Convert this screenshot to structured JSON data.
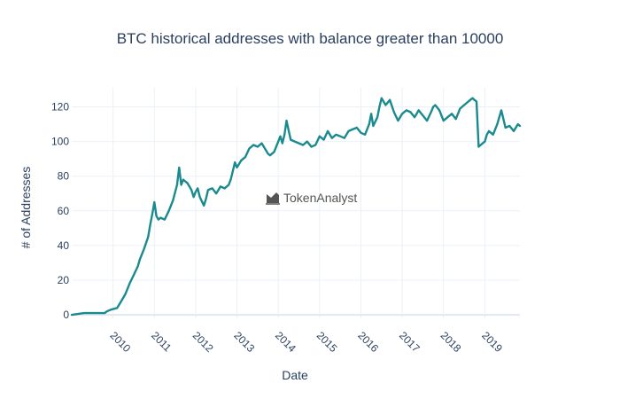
{
  "chart_data": {
    "type": "line",
    "title": "BTC historical addresses with balance greater than 10000",
    "xlabel": "Date",
    "ylabel": "# of Addresses",
    "xlim": [
      2009.0,
      2019.85
    ],
    "ylim": [
      -2,
      131
    ],
    "yticks": [
      0,
      20,
      40,
      60,
      80,
      100,
      120
    ],
    "xticks": [
      2010,
      2011,
      2012,
      2013,
      2014,
      2015,
      2016,
      2017,
      2018,
      2019
    ],
    "xtick_labels": [
      "2010",
      "2011",
      "2012",
      "2013",
      "2014",
      "2015",
      "2016",
      "2017",
      "2018",
      "2019"
    ],
    "grid": true,
    "line_color": "#1b8a8f",
    "series": [
      {
        "x": [
          2009.0,
          2009.3,
          2009.7,
          2009.8,
          2009.85,
          2009.95,
          2010.1,
          2010.2,
          2010.3,
          2010.4,
          2010.5,
          2010.6,
          2010.65,
          2010.75,
          2010.85,
          2010.9,
          2010.95,
          2011.0,
          2011.05,
          2011.1,
          2011.15,
          2011.25,
          2011.35,
          2011.45,
          2011.55,
          2011.6,
          2011.65,
          2011.7,
          2011.75,
          2011.8,
          2011.9,
          2011.95,
          2012.0,
          2012.05,
          2012.1,
          2012.2,
          2012.25,
          2012.3,
          2012.4,
          2012.5,
          2012.6,
          2012.7,
          2012.8,
          2012.85,
          2012.9,
          2012.95,
          2013.0,
          2013.1,
          2013.2,
          2013.3,
          2013.4,
          2013.5,
          2013.6,
          2013.7,
          2013.75,
          2013.8,
          2013.9,
          2014.0,
          2014.05,
          2014.1,
          2014.15,
          2014.2,
          2014.3,
          2014.4,
          2014.5,
          2014.6,
          2014.7,
          2014.8,
          2014.9,
          2015.0,
          2015.1,
          2015.2,
          2015.3,
          2015.4,
          2015.5,
          2015.6,
          2015.7,
          2015.8,
          2015.9,
          2016.0,
          2016.1,
          2016.2,
          2016.25,
          2016.3,
          2016.4,
          2016.45,
          2016.5,
          2016.6,
          2016.7,
          2016.8,
          2016.9,
          2017.0,
          2017.1,
          2017.2,
          2017.3,
          2017.4,
          2017.5,
          2017.6,
          2017.7,
          2017.75,
          2017.8,
          2017.9,
          2018.0,
          2018.1,
          2018.2,
          2018.3,
          2018.4,
          2018.5,
          2018.6,
          2018.7,
          2018.75,
          2018.8,
          2018.85,
          2018.9,
          2019.0,
          2019.05,
          2019.1,
          2019.2,
          2019.3,
          2019.4,
          2019.5,
          2019.6,
          2019.7,
          2019.8,
          2019.85
        ],
        "y": [
          0,
          1,
          1,
          1,
          2,
          3,
          4,
          8,
          12,
          18,
          23,
          28,
          32,
          38,
          45,
          52,
          58,
          65,
          57,
          55,
          56,
          55,
          60,
          66,
          75,
          85,
          75,
          78,
          77,
          76,
          72,
          68,
          71,
          73,
          68,
          63,
          67,
          72,
          73,
          70,
          74,
          73,
          75,
          78,
          83,
          88,
          85,
          89,
          91,
          96,
          98,
          97,
          99,
          95,
          93,
          92,
          94,
          100,
          103,
          99,
          104,
          112,
          101,
          100,
          99,
          98,
          100,
          97,
          98,
          103,
          101,
          106,
          102,
          104,
          103,
          102,
          106,
          107,
          108,
          105,
          104,
          110,
          116,
          109,
          114,
          120,
          125,
          121,
          124,
          117,
          112,
          116,
          118,
          117,
          114,
          118,
          115,
          112,
          117,
          120,
          121,
          118,
          112,
          114,
          116,
          113,
          119,
          121,
          123,
          125,
          124,
          123,
          97,
          98,
          100,
          104,
          106,
          104,
          110,
          118,
          108,
          109,
          106,
          110,
          109
        ]
      }
    ]
  },
  "watermark": {
    "text": "TokenAnalyst",
    "icon": "chart-trend-icon"
  }
}
